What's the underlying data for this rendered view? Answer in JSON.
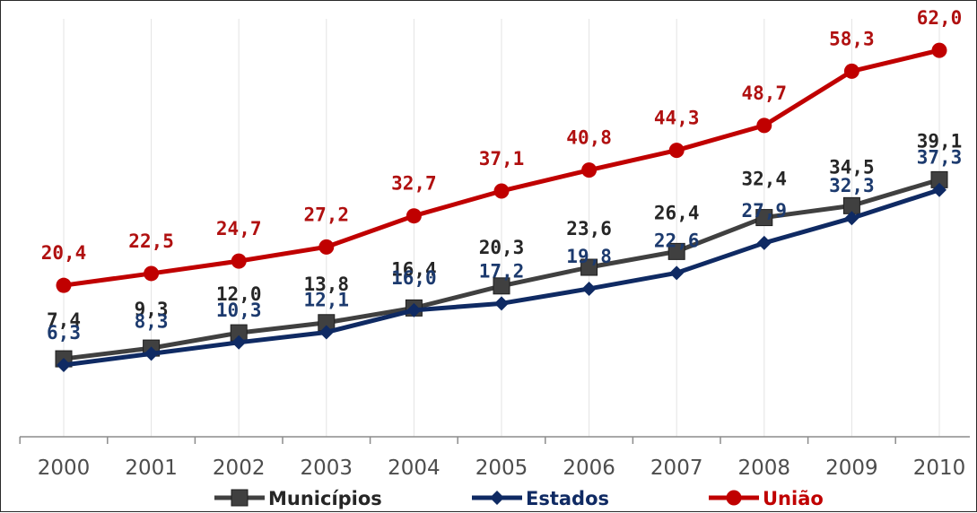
{
  "chart_data": {
    "type": "line",
    "title": "",
    "xlabel": "",
    "ylabel": "",
    "categories": [
      "2000",
      "2001",
      "2002",
      "2003",
      "2004",
      "2005",
      "2006",
      "2007",
      "2008",
      "2009",
      "2010"
    ],
    "series": [
      {
        "name": "Municípios",
        "color": "#404040",
        "marker": "square",
        "values": [
          7.4,
          9.3,
          12.0,
          13.8,
          16.4,
          20.3,
          23.6,
          26.4,
          32.4,
          34.5,
          39.1
        ],
        "labels": [
          "7,4",
          "9,3",
          "12,0",
          "13,8",
          "16,4",
          "20,3",
          "23,6",
          "26,4",
          "32,4",
          "34,5",
          "39,1"
        ],
        "label_color": "#262626"
      },
      {
        "name": "Estados",
        "color": "#0f2a63",
        "marker": "diamond",
        "values": [
          6.3,
          8.3,
          10.3,
          12.1,
          16.0,
          17.2,
          19.8,
          22.6,
          27.9,
          32.3,
          37.3
        ],
        "labels": [
          "6,3",
          "8,3",
          "10,3",
          "12,1",
          "16,0",
          "17,2",
          "19,8",
          "22,6",
          "27,9",
          "32,3",
          "37,3"
        ],
        "label_color": "#1c3a6e"
      },
      {
        "name": "União",
        "color": "#c00000",
        "marker": "circle",
        "values": [
          20.4,
          22.5,
          24.7,
          27.2,
          32.7,
          37.1,
          40.8,
          44.3,
          48.7,
          58.3,
          62.0
        ],
        "labels": [
          "20,4",
          "22,5",
          "24,7",
          "27,2",
          "32,7",
          "37,1",
          "40,8",
          "44,3",
          "48,7",
          "58,3",
          "62,0"
        ],
        "label_color": "#b01010"
      }
    ],
    "grid": "vertical",
    "legend_position": "bottom"
  }
}
